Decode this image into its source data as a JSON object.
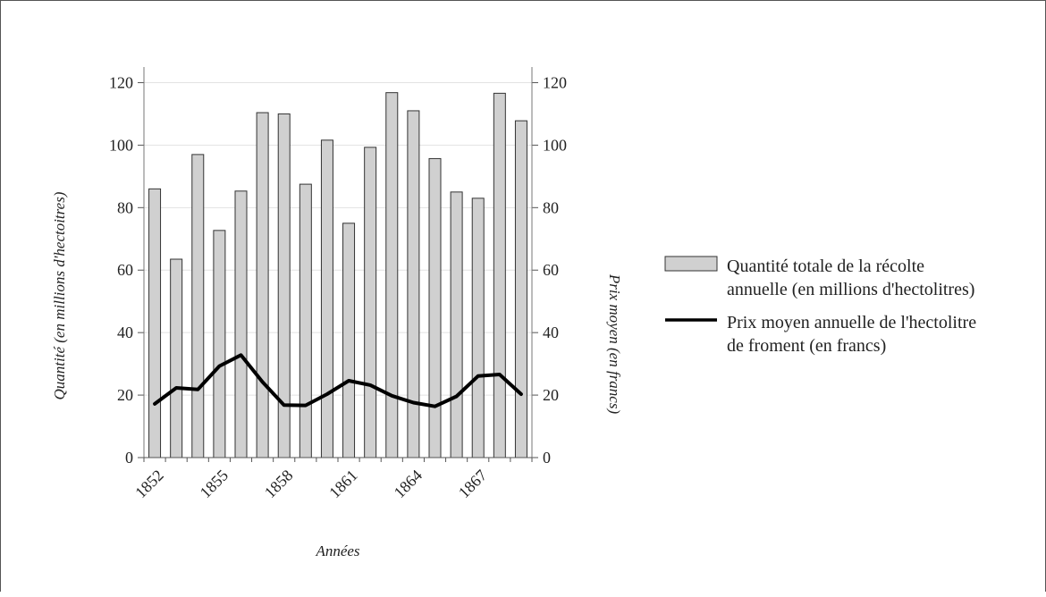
{
  "chart_data": {
    "type": "bar",
    "x_title": "Années",
    "y_left_title": "Quantité (en millions d'hectoitres)",
    "y_right_title": "Prix moyen (en francs)",
    "ylim": [
      0,
      125
    ],
    "y_ticks": [
      0,
      20,
      40,
      60,
      80,
      100,
      120
    ],
    "categories": [
      1852,
      1853,
      1854,
      1855,
      1856,
      1857,
      1858,
      1859,
      1860,
      1861,
      1862,
      1863,
      1864,
      1865,
      1866,
      1867,
      1868,
      1869
    ],
    "x_tick_labels": [
      "1852",
      "1855",
      "1858",
      "1861",
      "1864",
      "1867"
    ],
    "x_tick_years": [
      1852,
      1855,
      1858,
      1861,
      1864,
      1867
    ],
    "series": [
      {
        "name": "Quantité totale de la récolte annuelle (en millions d'hectolitres)",
        "type": "bar",
        "axis": "left",
        "color": "#d0d0d0",
        "values": [
          86,
          63.5,
          97,
          72.7,
          85.3,
          110.4,
          110,
          87.5,
          101.6,
          75,
          99.3,
          116.8,
          111,
          95.7,
          85,
          83,
          116.6,
          107.8
        ]
      },
      {
        "name": "Prix moyen annuelle de l'hectolitre de froment (en francs)",
        "type": "line",
        "axis": "right",
        "color": "#000000",
        "values": [
          17.2,
          22.3,
          21.8,
          29.3,
          32.8,
          24.2,
          16.8,
          16.7,
          20.3,
          24.6,
          23.2,
          19.8,
          17.6,
          16.4,
          19.6,
          26.1,
          26.6,
          20.3
        ]
      }
    ],
    "legend": {
      "position": "right",
      "entries": [
        {
          "line1": "Quantité totale de la récolte",
          "line2": "annuelle (en millions d'hectolitres)",
          "swatch": "bar"
        },
        {
          "line1": "Prix moyen annuelle de l'hectolitre",
          "line2": "de froment (en francs)",
          "swatch": "line"
        }
      ]
    },
    "grid": true
  }
}
